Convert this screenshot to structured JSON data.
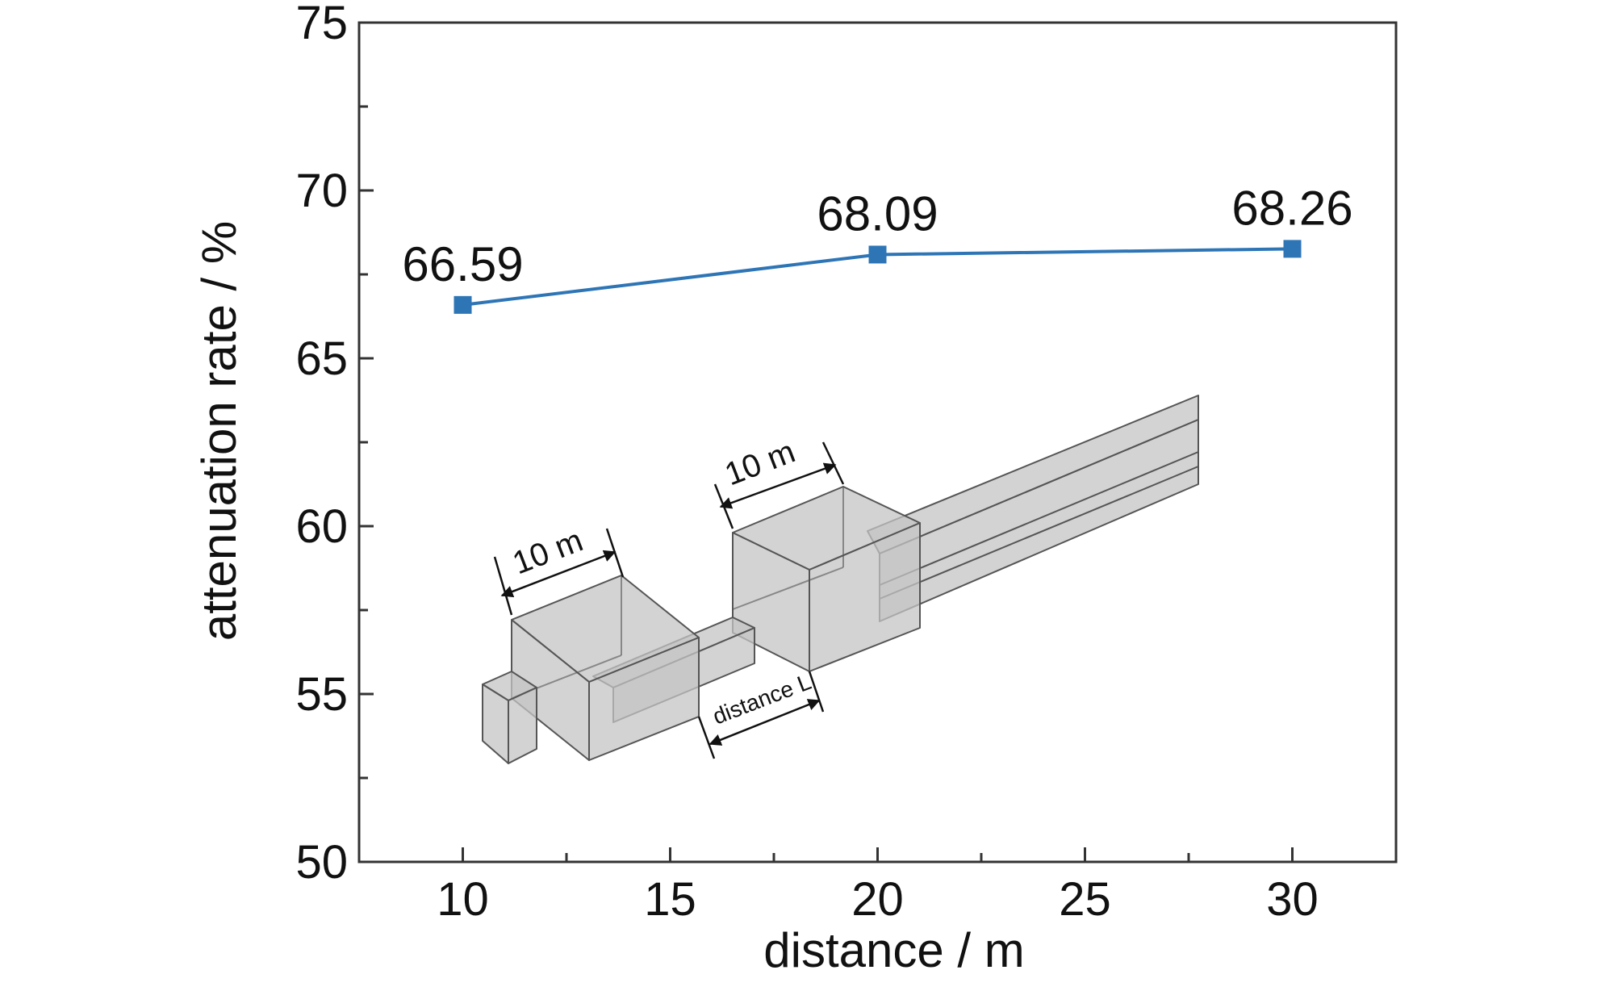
{
  "chart_data": {
    "type": "line",
    "title": "",
    "xlabel": "distance / m",
    "ylabel": "attenuation rate / %",
    "x": [
      10,
      20,
      30
    ],
    "series": [
      {
        "values": [
          66.59,
          68.09,
          68.26
        ],
        "color": "#2e75b6",
        "marker": "square"
      }
    ],
    "data_labels": [
      "66.59",
      "68.09",
      "68.26"
    ],
    "xlim": [
      7.5,
      32.5
    ],
    "ylim": [
      50,
      75
    ],
    "xticks": [
      10,
      15,
      20,
      25,
      30
    ],
    "xtick_labels": [
      "10",
      "15",
      "20",
      "25",
      "30"
    ],
    "yticks": [
      50,
      55,
      60,
      65,
      70,
      75
    ],
    "ytick_labels": [
      "50",
      "55",
      "60",
      "65",
      "70",
      "75"
    ],
    "grid": false,
    "legend": "none",
    "inset": {
      "description_labels": {
        "chamber1_width": "10 m",
        "chamber2_width": "10 m",
        "spacing": "distance L"
      }
    }
  }
}
